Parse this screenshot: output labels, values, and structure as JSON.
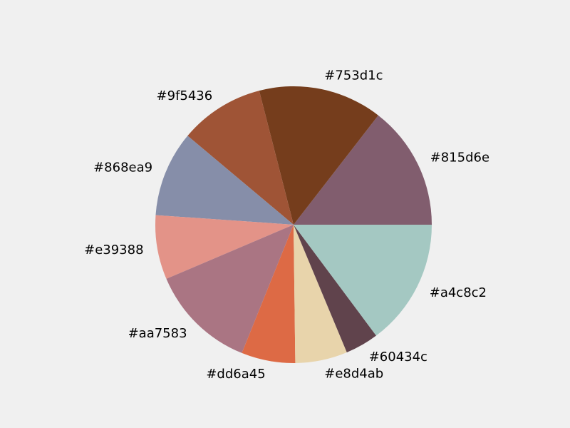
{
  "chart_data": {
    "type": "pie",
    "title": "",
    "start_angle_deg": 0,
    "direction": "counterclockwise",
    "slices": [
      {
        "label": "#815d6e",
        "color": "#815d6e",
        "value": 14.5
      },
      {
        "label": "#753d1c",
        "color": "#753d1c",
        "value": 14.5
      },
      {
        "label": "#9f5436",
        "color": "#9f5436",
        "value": 9.9
      },
      {
        "label": "#868ea9",
        "color": "#868ea9",
        "value": 10.0
      },
      {
        "label": "#e39388",
        "color": "#e39388",
        "value": 7.5
      },
      {
        "label": "#aa7583",
        "color": "#aa7583",
        "value": 12.5
      },
      {
        "label": "#dd6a45",
        "color": "#dd6a45",
        "value": 6.3
      },
      {
        "label": "#e8d4ab",
        "color": "#e8d4ab",
        "value": 6.1
      },
      {
        "label": "#60434c",
        "color": "#60434c",
        "value": 3.9
      },
      {
        "label": "#a4c8c2",
        "color": "#a4c8c2",
        "value": 14.8
      }
    ]
  }
}
